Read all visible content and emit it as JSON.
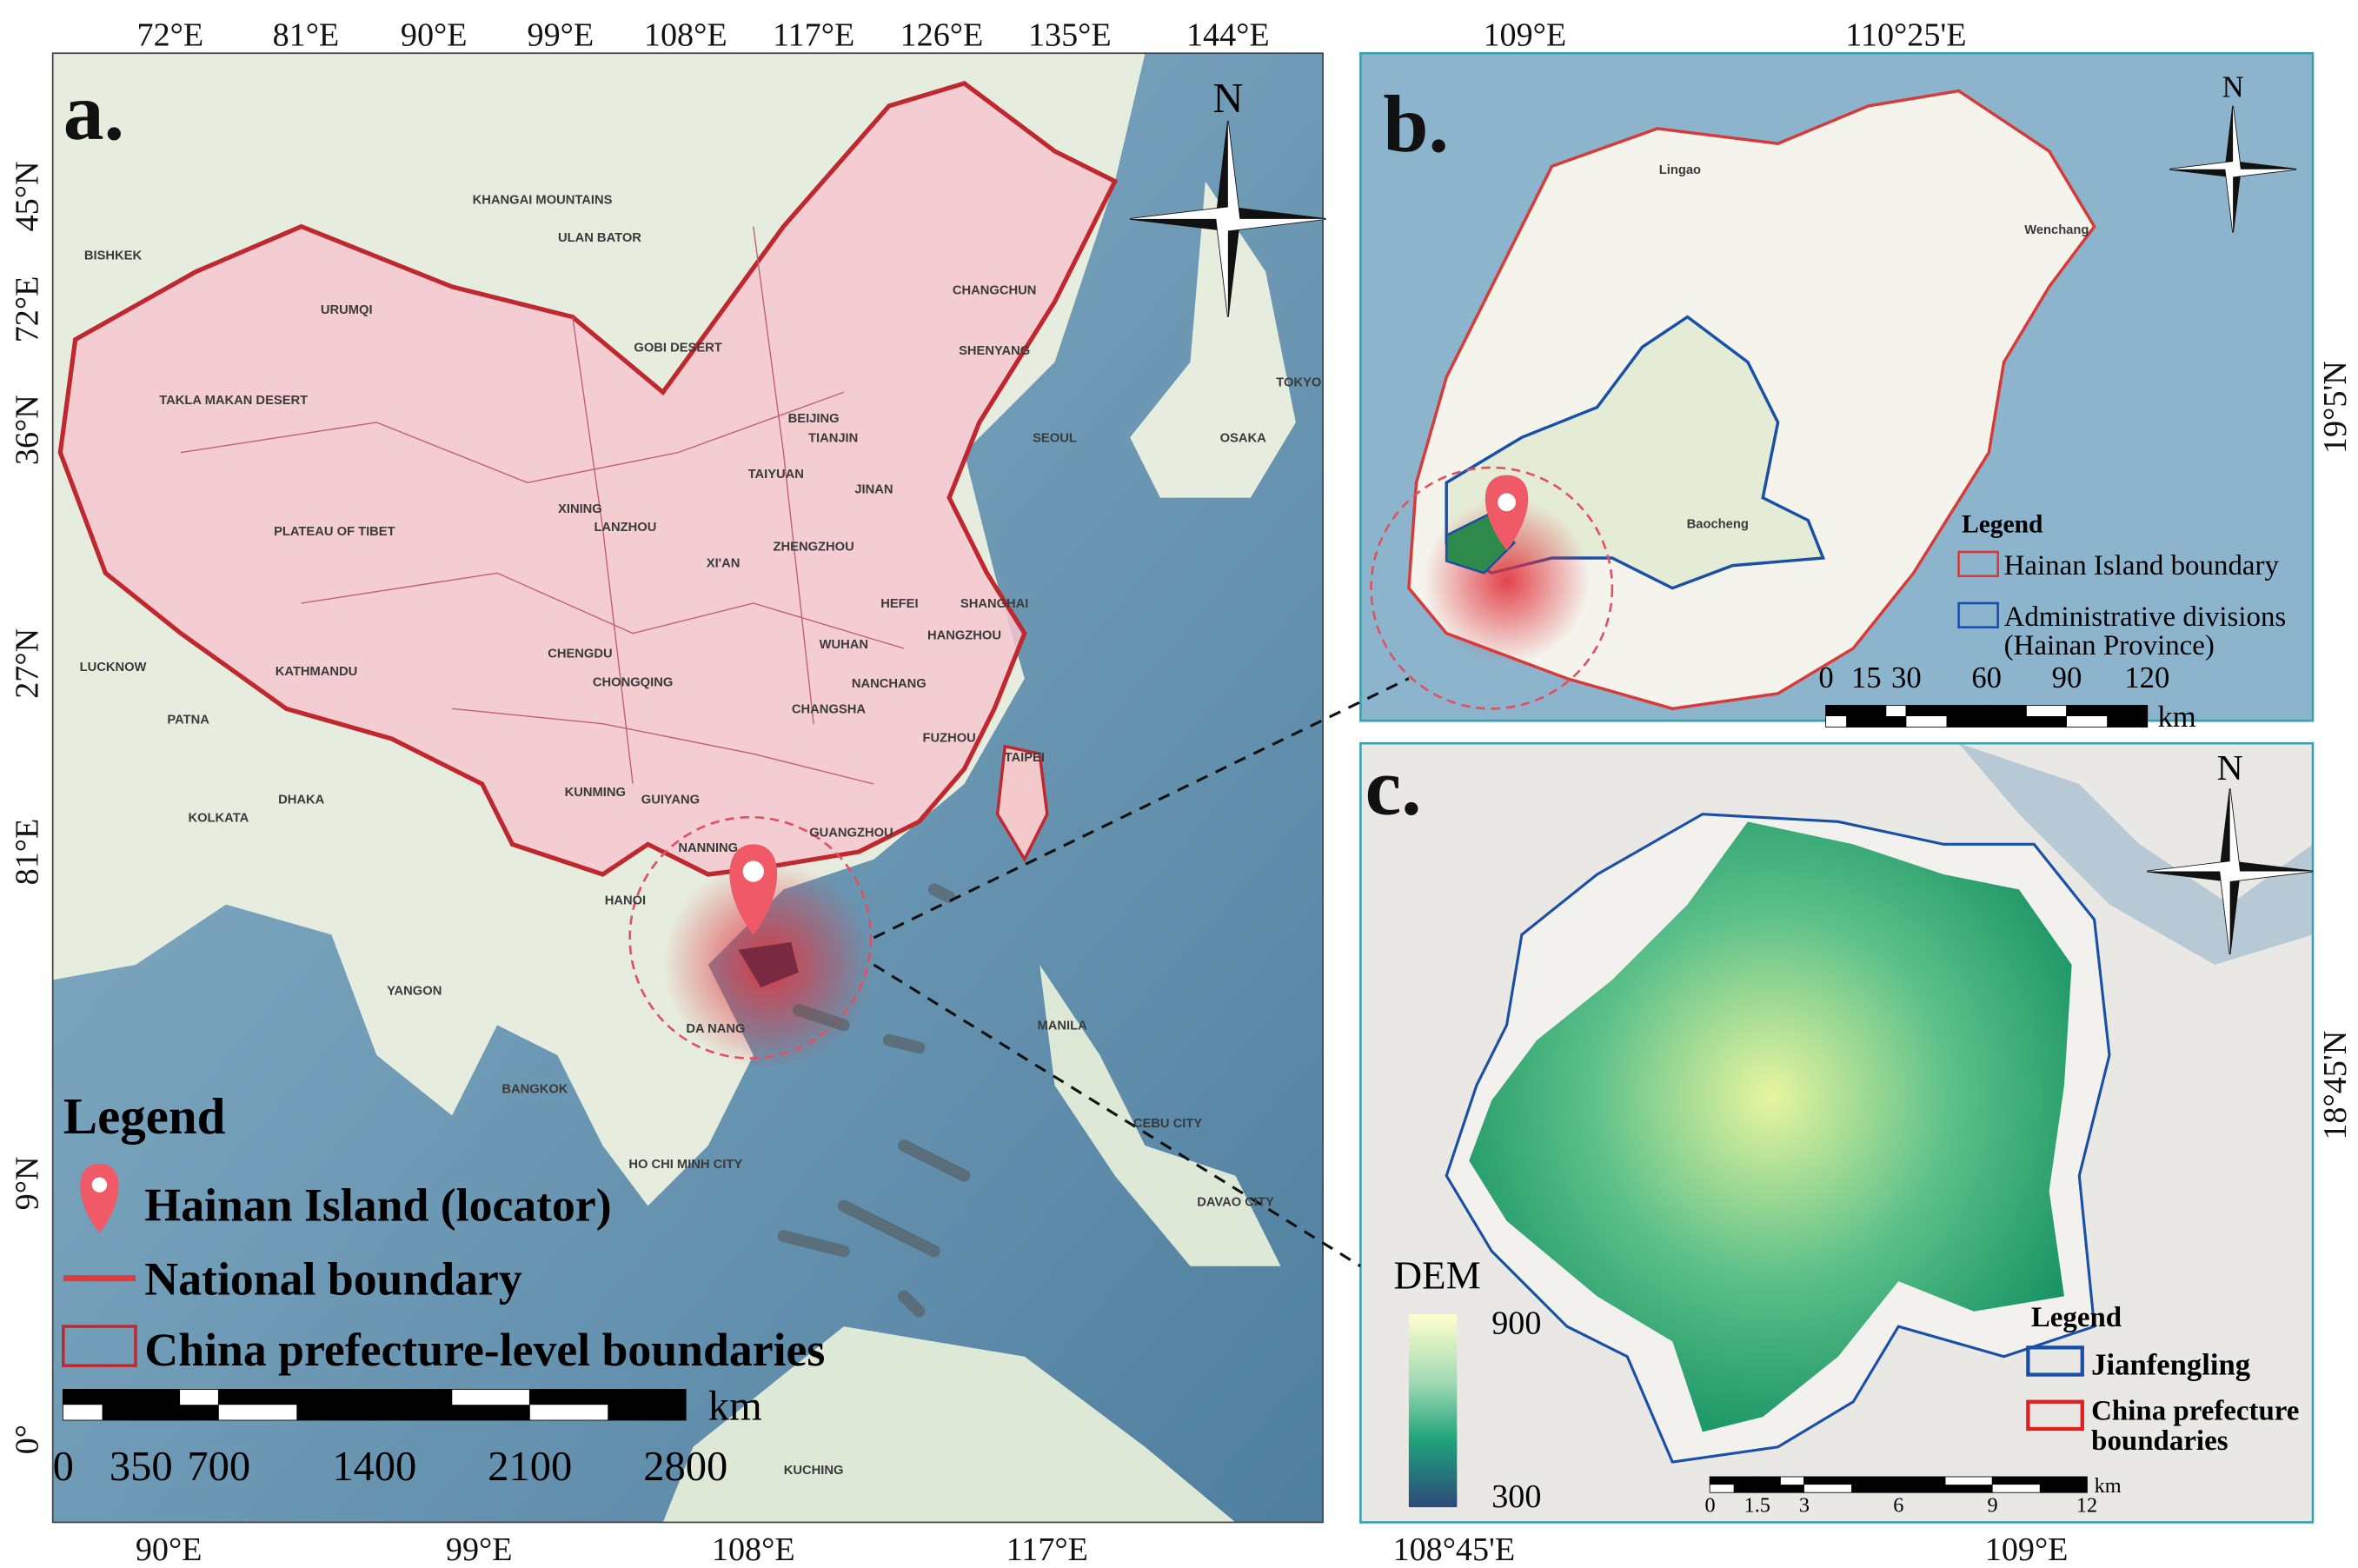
{
  "panel_a": {
    "label": "a.",
    "north": "N",
    "lon_top": [
      "72°E",
      "81°E",
      "90°E",
      "99°E",
      "108°E",
      "117°E",
      "126°E",
      "135°E",
      "144°E"
    ],
    "lon_bottom": [
      "90°E",
      "99°E",
      "108°E",
      "117°E"
    ],
    "lat_left": [
      "45°N",
      "72°E",
      "36°N",
      "27°N",
      "81°E",
      "9°N",
      "0°"
    ],
    "places": [
      "BISHKEK",
      "URUMQI",
      "ULAN BATOR",
      "KHANGAI MOUNTAINS",
      "GOBI DESERT",
      "CHANGCHUN",
      "SHENYANG",
      "BEIJING",
      "TIANJIN",
      "SEOUL",
      "OSAKA",
      "TOKYO",
      "XINING",
      "LANZHOU",
      "TAIYUAN",
      "JINAN",
      "XI'AN",
      "ZHENGZHOU",
      "SHANGHAI",
      "HEFEI",
      "WUHAN",
      "CHENGDU",
      "CHONGQING",
      "CHANGSHA",
      "NANCHANG",
      "HANGZHOU",
      "FUZHOU",
      "KUNMING",
      "GUIYANG",
      "GUANGZHOU",
      "NANNING",
      "HANOI",
      "TAIPEI",
      "MANILA",
      "BANGKOK",
      "DA NANG",
      "HO CHI MINH CITY",
      "KATHMANDU",
      "LUCKNOW",
      "KOLKATA",
      "DHAKA",
      "YANGON",
      "PATNA",
      "TAKLA MAKAN DESERT",
      "PLATEAU OF TIBET",
      "CEBU CITY",
      "DAVAO CITY",
      "KUCHING"
    ],
    "legend": {
      "title": "Legend",
      "items": [
        "Hainan Island (locator)",
        "National boundary",
        "China prefecture-level boundaries"
      ]
    },
    "scale_bar": {
      "ticks": [
        0,
        350,
        700,
        1400,
        2100,
        2800
      ],
      "unit": "km"
    }
  },
  "panel_b": {
    "label": "b.",
    "north": "N",
    "lon_top": [
      "109°E",
      "110°25'E"
    ],
    "lat_right": [
      "19°5'N"
    ],
    "places": [
      "Lingao",
      "Wenchang",
      "Baocheng"
    ],
    "legend": {
      "title": "Legend",
      "items": [
        [
          "Hainan Island boundary"
        ],
        [
          "Administrative divisions",
          "(Hainan Province)"
        ]
      ]
    },
    "scale_bar": {
      "ticks": [
        0,
        15,
        30,
        60,
        90,
        120
      ],
      "unit": "km"
    }
  },
  "panel_c": {
    "label": "c.",
    "north": "N",
    "lon_bottom": [
      "108°45'E",
      "109°E"
    ],
    "lat_right": [
      "18°45'N"
    ],
    "colorbar": {
      "title": "DEM",
      "max": 900,
      "min": 300
    },
    "legend": {
      "title": "Legend",
      "items": [
        [
          "Jianfengling"
        ],
        [
          "China prefecture",
          "boundaries"
        ]
      ]
    },
    "scale_bar": {
      "ticks": [
        0,
        1.5,
        3,
        6,
        9,
        12
      ],
      "unit": "km"
    }
  }
}
